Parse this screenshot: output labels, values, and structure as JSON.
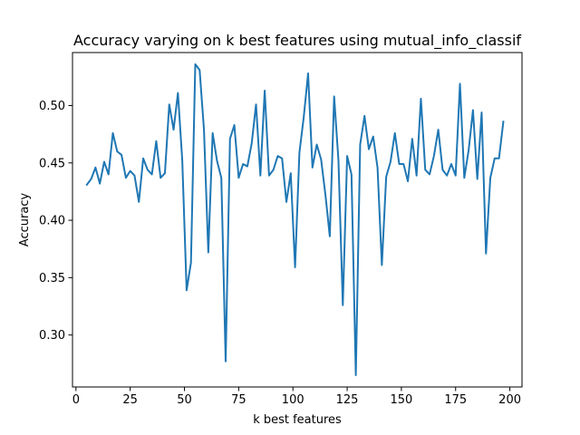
{
  "chart_data": {
    "type": "line",
    "title": "Accuracy varying on k best features using mutual_info_classif",
    "xlabel": "k best features",
    "ylabel": "Accuracy",
    "xlim": [
      -1.6,
      205.6
    ],
    "ylim": [
      0.2547,
      0.5462
    ],
    "xticks": [
      0,
      25,
      50,
      75,
      100,
      125,
      150,
      175,
      200
    ],
    "yticks": [
      0.3,
      0.35,
      0.4,
      0.45,
      0.5
    ],
    "xtick_labels": [
      "0",
      "25",
      "50",
      "75",
      "100",
      "125",
      "150",
      "175",
      "200"
    ],
    "ytick_labels": [
      "0.30",
      "0.35",
      "0.40",
      "0.45",
      "0.50"
    ],
    "grid": false,
    "legend": "none",
    "series": [
      {
        "color": "#1f77b4",
        "x": [
          5,
          7,
          9,
          11,
          13,
          15,
          17,
          19,
          21,
          23,
          25,
          27,
          29,
          31,
          33,
          35,
          37,
          39,
          41,
          43,
          45,
          47,
          49,
          51,
          53,
          55,
          57,
          59,
          61,
          63,
          65,
          67,
          69,
          71,
          73,
          75,
          77,
          79,
          81,
          83,
          85,
          87,
          89,
          91,
          93,
          95,
          97,
          99,
          101,
          103,
          105,
          107,
          109,
          111,
          113,
          115,
          117,
          119,
          121,
          123,
          125,
          127,
          129,
          131,
          133,
          135,
          137,
          139,
          141,
          143,
          145,
          147,
          149,
          151,
          153,
          155,
          157,
          159,
          161,
          163,
          165,
          167,
          169,
          171,
          173,
          175,
          177,
          179,
          181,
          183,
          185,
          187,
          189,
          191,
          193,
          195,
          197
        ],
        "y": [
          0.431,
          0.436,
          0.446,
          0.432,
          0.451,
          0.44,
          0.476,
          0.46,
          0.457,
          0.437,
          0.443,
          0.439,
          0.416,
          0.454,
          0.444,
          0.44,
          0.469,
          0.437,
          0.441,
          0.501,
          0.479,
          0.511,
          0.452,
          0.339,
          0.363,
          0.536,
          0.531,
          0.479,
          0.372,
          0.476,
          0.452,
          0.437,
          0.277,
          0.471,
          0.483,
          0.437,
          0.449,
          0.447,
          0.467,
          0.501,
          0.439,
          0.513,
          0.439,
          0.444,
          0.456,
          0.454,
          0.416,
          0.441,
          0.359,
          0.459,
          0.49,
          0.528,
          0.446,
          0.466,
          0.453,
          0.422,
          0.386,
          0.508,
          0.452,
          0.326,
          0.456,
          0.44,
          0.265,
          0.466,
          0.491,
          0.462,
          0.473,
          0.446,
          0.361,
          0.438,
          0.451,
          0.476,
          0.449,
          0.449,
          0.434,
          0.471,
          0.439,
          0.506,
          0.444,
          0.44,
          0.456,
          0.479,
          0.444,
          0.439,
          0.449,
          0.439,
          0.519,
          0.437,
          0.461,
          0.496,
          0.436,
          0.494,
          0.371,
          0.437,
          0.454,
          0.454,
          0.486
        ]
      }
    ]
  }
}
